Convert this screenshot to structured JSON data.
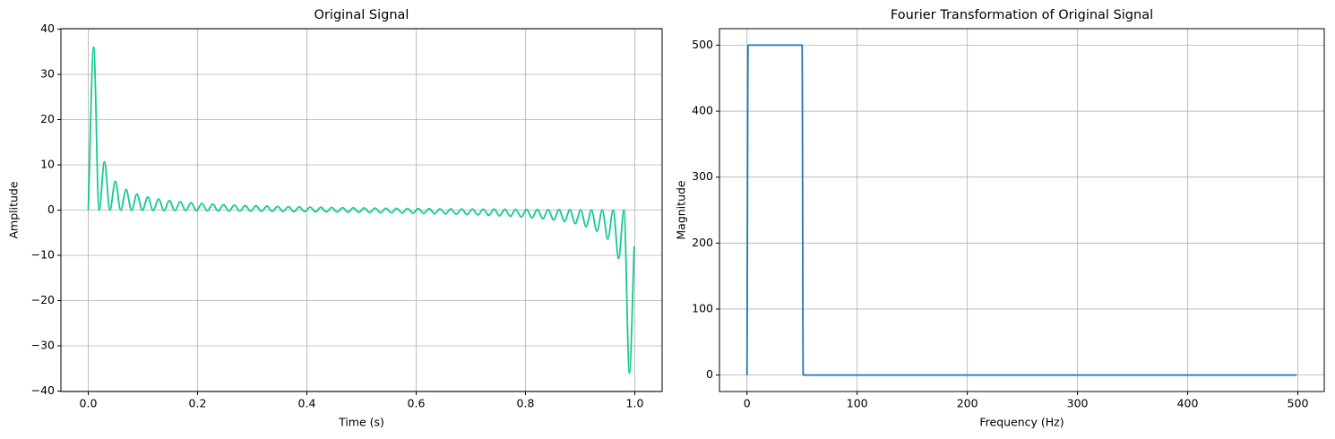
{
  "chart_data": [
    {
      "type": "line",
      "title": "Original Signal",
      "xlabel": "Time (s)",
      "ylabel": "Amplitude",
      "color": "#12c993",
      "grid": true,
      "xlim": [
        -0.05,
        1.05
      ],
      "ylim": [
        -40.1,
        40.1
      ],
      "xticks": [
        {
          "value": 0,
          "label": "0.0"
        },
        {
          "value": 0.2,
          "label": "0.2"
        },
        {
          "value": 0.4,
          "label": "0.4"
        },
        {
          "value": 0.6,
          "label": "0.6"
        },
        {
          "value": 0.8,
          "label": "0.8"
        },
        {
          "value": 1,
          "label": "1.0"
        }
      ],
      "yticks": [
        {
          "value": -40,
          "label": "−40"
        },
        {
          "value": -30,
          "label": "−30"
        },
        {
          "value": -20,
          "label": "−20"
        },
        {
          "value": -10,
          "label": "−10"
        },
        0,
        10,
        20,
        30,
        40
      ],
      "x": [
        0,
        0.0099,
        0.0198,
        0.0297,
        0.0396,
        0.0495,
        0.0594,
        0.0693,
        0.0792,
        0.0891,
        0.099,
        0.1089,
        0.1188,
        0.1287,
        0.1386,
        0.1485,
        0.1584,
        0.1683,
        0.1782,
        0.1881,
        0.198,
        0.2079,
        0.2178,
        0.2277,
        0.2376,
        0.2475,
        0.2574,
        0.2673,
        0.2772,
        0.2871,
        0.297,
        0.3069,
        0.3168,
        0.3267,
        0.3366,
        0.3465,
        0.3564,
        0.3663,
        0.3762,
        0.3861,
        0.396,
        0.4059,
        0.4158,
        0.4257,
        0.4356,
        0.4455,
        0.4554,
        0.4653,
        0.4752,
        0.4851,
        0.495,
        0.505,
        0.5149,
        0.5248,
        0.5347,
        0.5446,
        0.5545,
        0.5644,
        0.5743,
        0.5842,
        0.5941,
        0.604,
        0.6139,
        0.6238,
        0.6337,
        0.6436,
        0.6535,
        0.6634,
        0.6733,
        0.6832,
        0.6931,
        0.703,
        0.7129,
        0.7228,
        0.7327,
        0.7426,
        0.7525,
        0.7624,
        0.7723,
        0.7822,
        0.7921,
        0.802,
        0.8119,
        0.8218,
        0.8317,
        0.8416,
        0.8515,
        0.8614,
        0.8713,
        0.8812,
        0.8911,
        0.901,
        0.9109,
        0.9208,
        0.9307,
        0.9406,
        0.9505,
        0.9604,
        0.9703,
        0.9802,
        0.9901,
        0.999
      ],
      "values": [
        0,
        36,
        -0.02,
        10.7,
        -0.03,
        6.41,
        -0.05,
        4.57,
        -0.06,
        3.55,
        -0.08,
        2.89,
        -0.09,
        2.44,
        -0.11,
        2.1,
        -0.13,
        1.85,
        -0.14,
        1.64,
        -0.16,
        1.48,
        -0.18,
        1.34,
        -0.2,
        1.22,
        -0.21,
        1.12,
        -0.23,
        1.03,
        -0.25,
        0.95,
        -0.27,
        0.88,
        -0.29,
        0.82,
        -0.32,
        0.77,
        -0.34,
        0.71,
        -0.36,
        0.67,
        -0.39,
        0.63,
        -0.41,
        0.59,
        -0.44,
        0.55,
        -0.47,
        0.51,
        -0.5,
        0.48,
        -0.54,
        0.45,
        -0.57,
        0.42,
        -0.61,
        0.4,
        -0.65,
        0.37,
        -0.69,
        0.35,
        -0.74,
        0.33,
        -0.8,
        0.3,
        -0.85,
        0.28,
        -0.92,
        0.26,
        -0.99,
        0.24,
        -1.07,
        0.22,
        -1.16,
        0.21,
        -1.27,
        0.19,
        -1.39,
        0.17,
        -1.53,
        0.15,
        -1.71,
        0.14,
        -1.92,
        0.12,
        -2.18,
        0.11,
        -2.52,
        0.09,
        -2.99,
        0.08,
        -3.65,
        0.06,
        -4.68,
        0.05,
        -6.45,
        0.03,
        -10.7,
        0.02,
        -36,
        -8
      ]
    },
    {
      "type": "line",
      "title": "Fourier Transformation of Original Signal",
      "xlabel": "Frequency (Hz)",
      "ylabel": "Magnitude",
      "color": "#1f77b4",
      "grid": true,
      "xlim": [
        -25,
        524
      ],
      "ylim": [
        -25,
        525
      ],
      "xticks": [
        0,
        100,
        200,
        300,
        400,
        500
      ],
      "yticks": [
        0,
        100,
        200,
        300,
        400,
        500
      ],
      "x": [
        0,
        1,
        50,
        51,
        499
      ],
      "values": [
        0,
        500,
        500,
        0,
        0
      ]
    }
  ]
}
